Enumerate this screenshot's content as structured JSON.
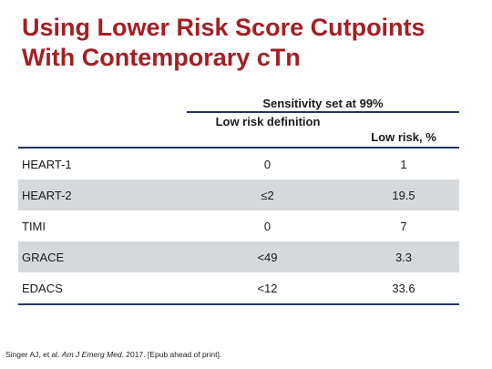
{
  "title": "Using Lower Risk Score Cutpoints With Contemporary cTn",
  "table": {
    "group_header": "Sensitivity set at 99%",
    "columns": [
      "Low risk definition",
      "Low risk, %"
    ],
    "rows": [
      {
        "name": "HEART-1",
        "definition": "0",
        "low_risk_pct": "1"
      },
      {
        "name": "HEART-2",
        "definition": "≤2",
        "low_risk_pct": "19.5"
      },
      {
        "name": "TIMI",
        "definition": "0",
        "low_risk_pct": "7"
      },
      {
        "name": "GRACE",
        "definition": "<49",
        "low_risk_pct": "3.3"
      },
      {
        "name": "EDACS",
        "definition": "<12",
        "low_risk_pct": "33.6"
      }
    ]
  },
  "citation": {
    "authors": "Singer AJ, et al.",
    "journal": "Am J Emerg Med",
    "rest": ". 2017. [Epub ahead of print]."
  }
}
